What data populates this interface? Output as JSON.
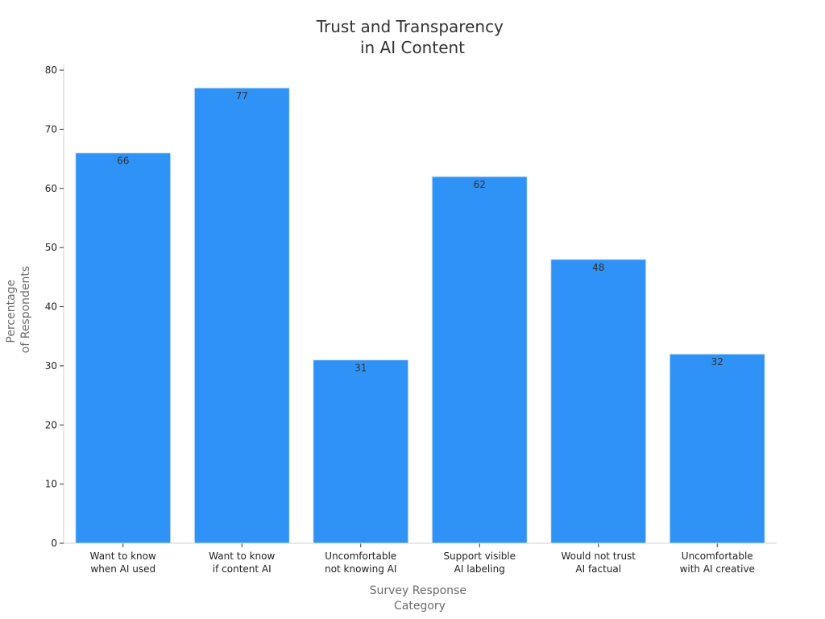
{
  "chart_data": {
    "type": "bar",
    "title": [
      "Trust and Transparency",
      "in AI Content"
    ],
    "xlabel": [
      "Survey Response",
      "Category"
    ],
    "ylabel": [
      "Percentage",
      "of Respondents"
    ],
    "categories": [
      [
        "Want to know",
        "when AI used"
      ],
      [
        "Want to know",
        "if content AI"
      ],
      [
        "Uncomfortable",
        "not knowing AI"
      ],
      [
        "Support visible",
        "AI labeling"
      ],
      [
        "Would not trust",
        "AI factual"
      ],
      [
        "Uncomfortable",
        "with AI creative"
      ]
    ],
    "values": [
      66,
      77,
      31,
      62,
      48,
      32
    ],
    "ylim": [
      0,
      80
    ],
    "yticks": [
      0,
      10,
      20,
      30,
      40,
      50,
      60,
      70,
      80
    ],
    "grid": false,
    "legend": "none",
    "bar_color": "#2e92f6",
    "bar_edge_color": "#d9e6f2",
    "axis_color": "#cfcfcf"
  }
}
